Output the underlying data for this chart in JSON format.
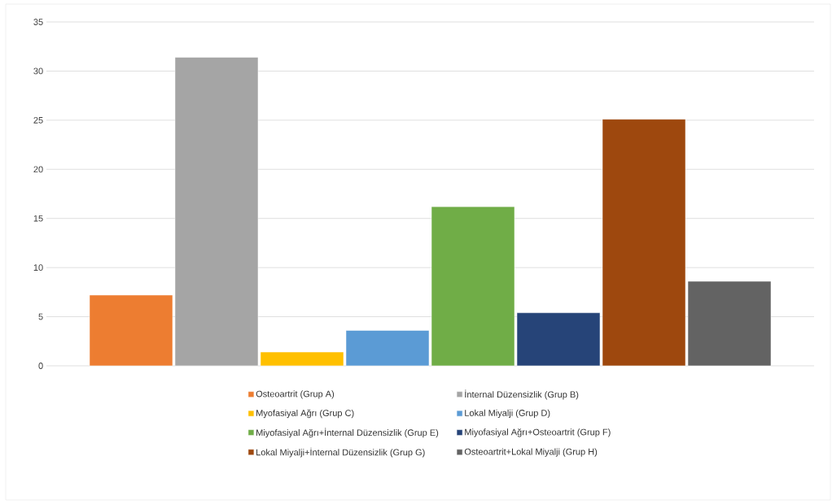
{
  "chart_data": {
    "type": "bar",
    "categories": [
      null
    ],
    "series": [
      {
        "name": "Osteoartrit (Grup A)",
        "color": "#ed7d31",
        "values": [
          7.2
        ]
      },
      {
        "name": "İnternal Düzensizlik (Grup B)",
        "color": "#a5a5a5",
        "values": [
          31.4
        ]
      },
      {
        "name": "Myofasiyal Ağrı (Grup C)",
        "color": "#ffc000",
        "values": [
          1.4
        ]
      },
      {
        "name": "Lokal Miyalji (Grup D)",
        "color": "#5b9bd5",
        "values": [
          3.6
        ]
      },
      {
        "name": "Miyofasiyal Ağrı+İnternal Düzensizlik (Grup E)",
        "color": "#70ad47",
        "values": [
          16.2
        ]
      },
      {
        "name": "Miyofasiyal Ağrı+Osteoartrit (Grup F)",
        "color": "#264478",
        "values": [
          5.4
        ]
      },
      {
        "name": "Lokal Miyalji+İnternal Düzensizlik (Grup G)",
        "color": "#9e480e",
        "values": [
          25.1
        ]
      },
      {
        "name": "Osteoartrit+Lokal Miyalji (Grup H)",
        "color": "#636363",
        "values": [
          8.6
        ]
      }
    ],
    "ylim": [
      0,
      35
    ],
    "yticks": [
      0,
      5,
      10,
      15,
      20,
      25,
      30,
      35
    ],
    "grid": "y",
    "legend": "bottom"
  }
}
